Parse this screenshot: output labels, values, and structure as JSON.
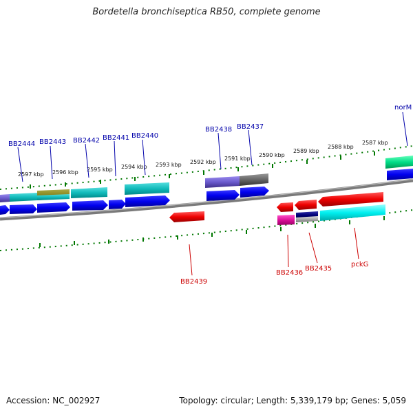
{
  "title": "Bordetella bronchiseptica RB50, complete genome",
  "footer": {
    "accession": "Accession: NC_002927",
    "summary": "Topology: circular; Length: 5,339,179 bp; Genes: 5,059"
  },
  "colors": {
    "forward_label": "#0000aa",
    "reverse_label": "#cc0000",
    "tick": "#007700",
    "backbone": "#808080"
  },
  "scale_labels": [
    "2597 kbp",
    "2596 kbp",
    "2595 kbp",
    "2594 kbp",
    "2593 kbp",
    "2592 kbp",
    "2591 kbp",
    "2590 kbp",
    "2589 kbp",
    "2588 kbp",
    "2587 kbp"
  ],
  "forward_labels": [
    "BB2444",
    "BB2443",
    "BB2442",
    "BB2441",
    "BB2440",
    "BB2438",
    "BB2437",
    "norM"
  ],
  "reverse_labels": [
    "BB2439",
    "BB2436",
    "BB2435",
    "pckG"
  ]
}
